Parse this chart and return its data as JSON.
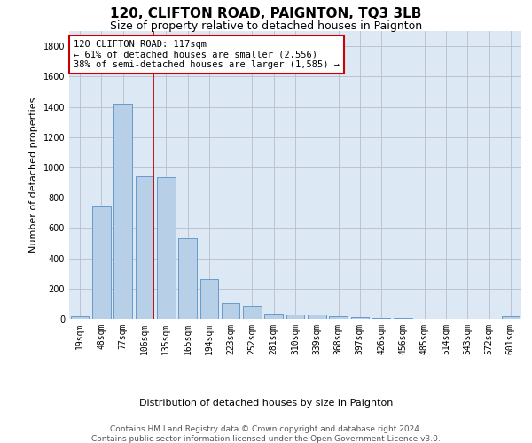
{
  "title": "120, CLIFTON ROAD, PAIGNTON, TQ3 3LB",
  "subtitle": "Size of property relative to detached houses in Paignton",
  "xlabel": "Distribution of detached houses by size in Paignton",
  "ylabel": "Number of detached properties",
  "categories": [
    "19sqm",
    "48sqm",
    "77sqm",
    "106sqm",
    "135sqm",
    "165sqm",
    "194sqm",
    "223sqm",
    "252sqm",
    "281sqm",
    "310sqm",
    "339sqm",
    "368sqm",
    "397sqm",
    "426sqm",
    "456sqm",
    "485sqm",
    "514sqm",
    "543sqm",
    "572sqm",
    "601sqm"
  ],
  "values": [
    20,
    740,
    1420,
    940,
    935,
    530,
    265,
    105,
    90,
    38,
    28,
    28,
    15,
    10,
    5,
    3,
    2,
    2,
    2,
    2,
    15
  ],
  "bar_color": "#b8cfe8",
  "bar_edgecolor": "#6699cc",
  "vline_x_index": 3,
  "vline_color": "#cc0000",
  "annotation_line1": "120 CLIFTON ROAD: 117sqm",
  "annotation_line2": "← 61% of detached houses are smaller (2,556)",
  "annotation_line3": "38% of semi-detached houses are larger (1,585) →",
  "annotation_box_color": "#ffffff",
  "annotation_box_edgecolor": "#cc0000",
  "ylim": [
    0,
    1900
  ],
  "yticks": [
    0,
    200,
    400,
    600,
    800,
    1000,
    1200,
    1400,
    1600,
    1800
  ],
  "footer_line1": "Contains HM Land Registry data © Crown copyright and database right 2024.",
  "footer_line2": "Contains public sector information licensed under the Open Government Licence v3.0.",
  "background_color": "#ffffff",
  "plot_bg_color": "#dde8f5",
  "grid_color": "#bbbbcc",
  "title_fontsize": 11,
  "subtitle_fontsize": 9,
  "axis_label_fontsize": 8,
  "tick_fontsize": 7,
  "annotation_fontsize": 7.5,
  "footer_fontsize": 6.5
}
